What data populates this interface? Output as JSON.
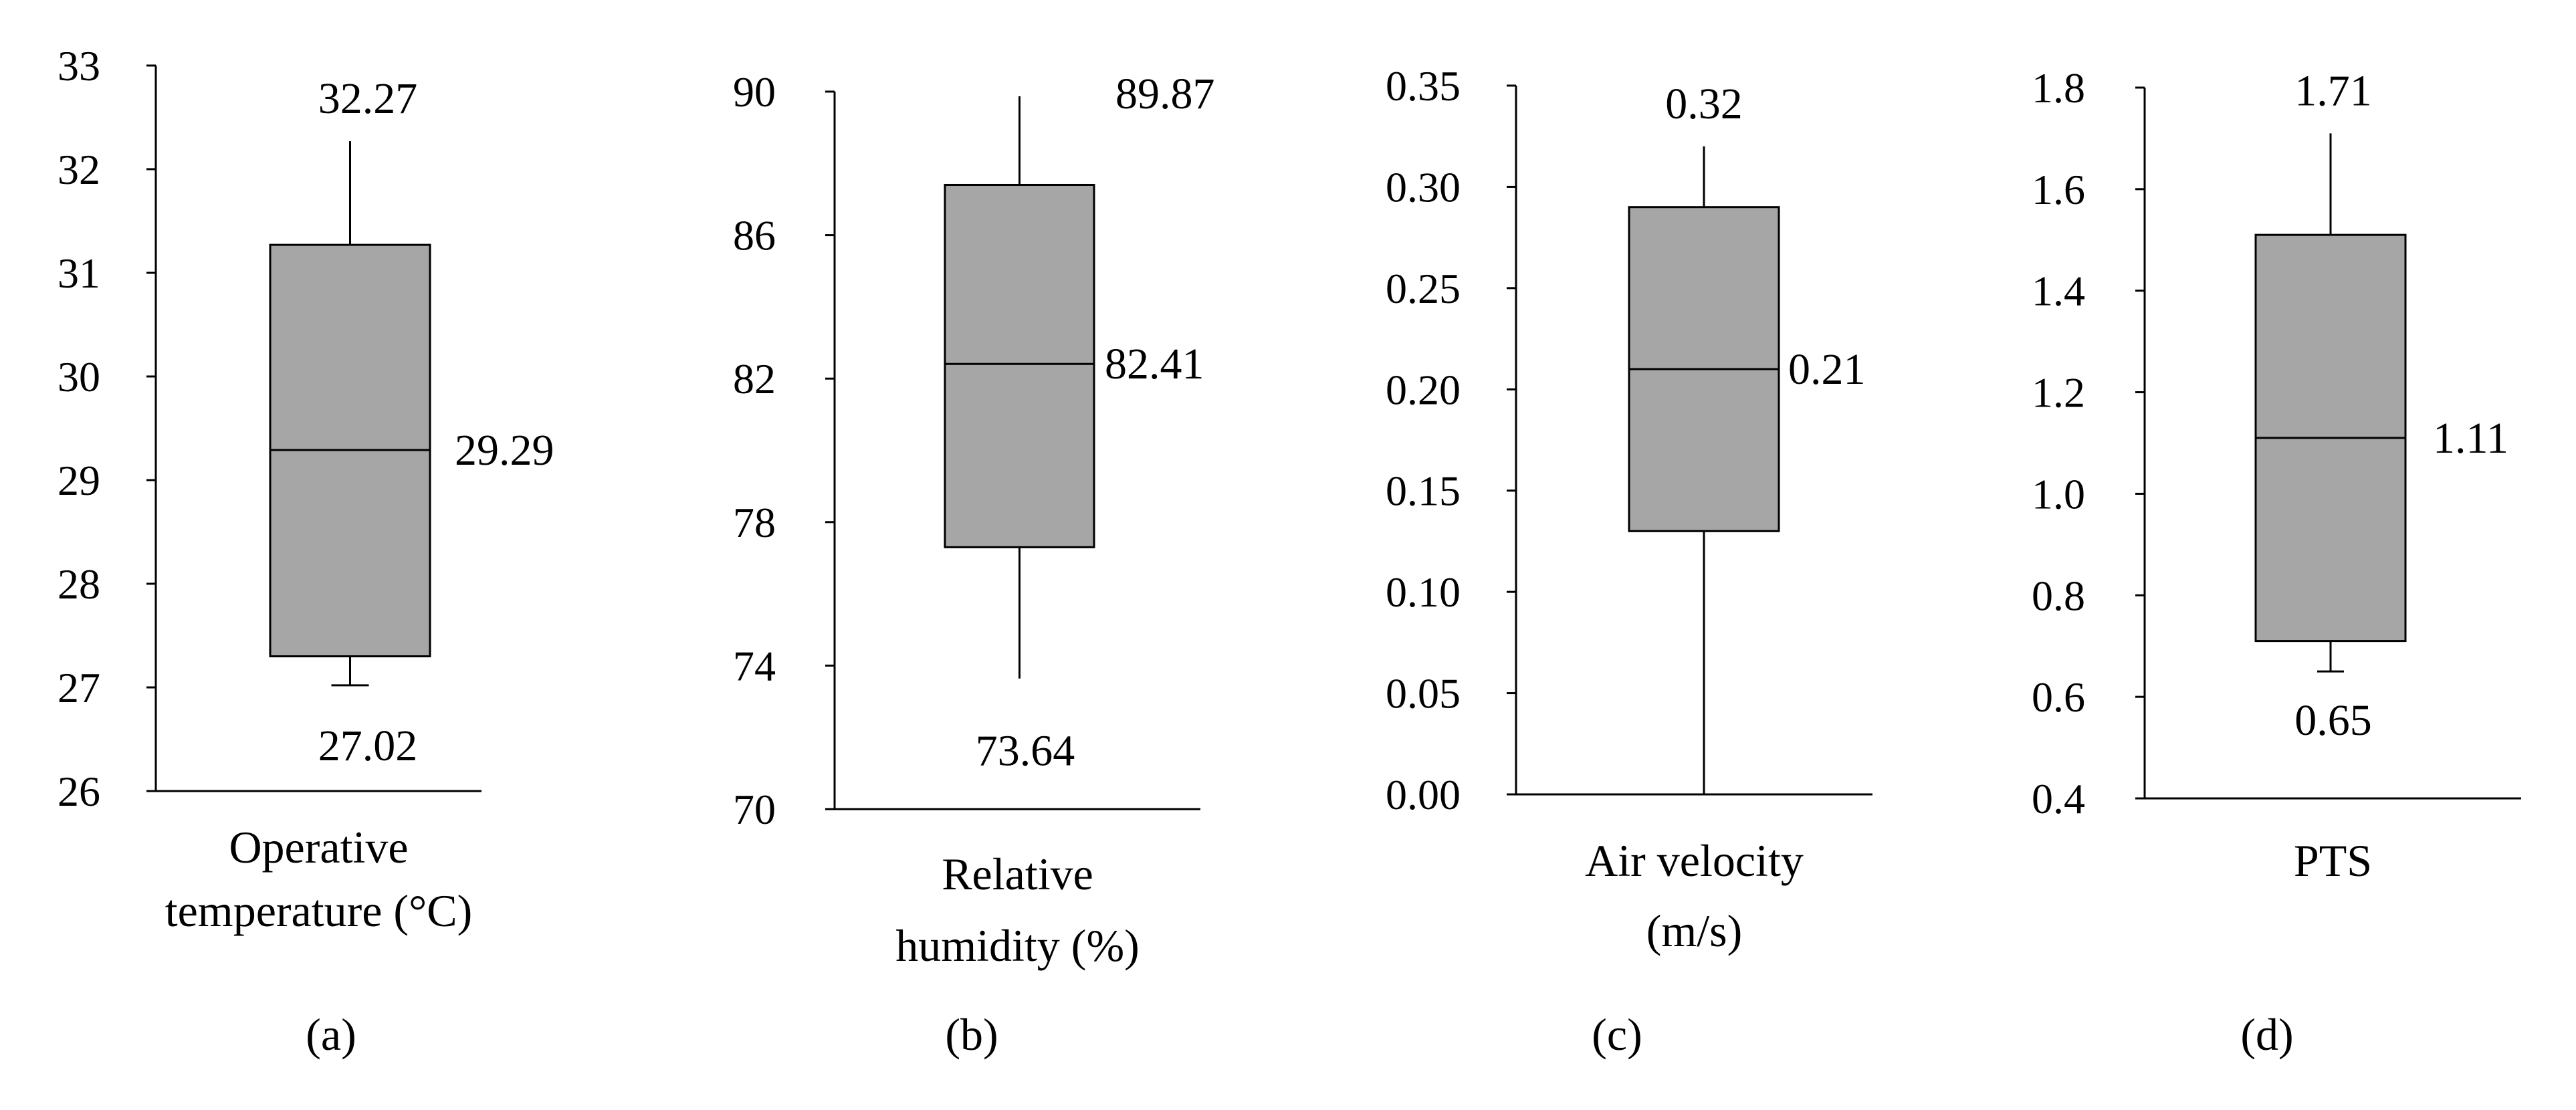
{
  "colors": {
    "box_fill": "#a6a6a6",
    "line": "#000000",
    "background": "#ffffff"
  },
  "chart_data": [
    {
      "type": "box",
      "panel": "(a)",
      "xlabel_lines": [
        "Operative",
        "temperature (°C)"
      ],
      "ylim": [
        26,
        33
      ],
      "ticks": [
        26,
        27,
        28,
        29,
        30,
        31,
        32,
        33
      ],
      "tick_labels": [
        "26",
        "27",
        "28",
        "29",
        "30",
        "31",
        "32",
        "33"
      ],
      "stats": {
        "min": 27.02,
        "q1": 27.3,
        "median": 29.29,
        "q3": 31.27,
        "max": 32.27
      },
      "labels": {
        "min": "27.02",
        "median": "29.29",
        "max": "32.27"
      }
    },
    {
      "type": "box",
      "panel": "(b)",
      "xlabel_lines": [
        "Relative",
        "humidity (%)"
      ],
      "ylim": [
        70,
        90
      ],
      "ticks": [
        70,
        74,
        78,
        82,
        86,
        90
      ],
      "tick_labels": [
        "70",
        "74",
        "78",
        "82",
        "86",
        "90"
      ],
      "stats": {
        "min": 73.64,
        "q1": 77.3,
        "median": 82.41,
        "q3": 87.4,
        "max": 89.87
      },
      "labels": {
        "min": "73.64",
        "median": "82.41",
        "max": "89.87"
      }
    },
    {
      "type": "box",
      "panel": "(c)",
      "xlabel_lines": [
        "Air velocity",
        "(m/s)"
      ],
      "ylim": [
        0,
        0.35
      ],
      "ticks": [
        0,
        0.05,
        0.1,
        0.15,
        0.2,
        0.25,
        0.3,
        0.35
      ],
      "tick_labels": [
        "0.00",
        "0.05",
        "0.10",
        "0.15",
        "0.20",
        "0.25",
        "0.30",
        "0.35"
      ],
      "stats": {
        "min": 0.0,
        "q1": 0.13,
        "median": 0.21,
        "q3": 0.29,
        "max": 0.32
      },
      "labels": {
        "median": "0.21",
        "max": "0.32"
      }
    },
    {
      "type": "box",
      "panel": "(d)",
      "xlabel_lines": [
        "PTS"
      ],
      "ylim": [
        0.4,
        1.8
      ],
      "ticks": [
        0.4,
        0.6,
        0.8,
        1.0,
        1.2,
        1.4,
        1.6,
        1.8
      ],
      "tick_labels": [
        "0.4",
        "0.6",
        "0.8",
        "1.0",
        "1.2",
        "1.4",
        "1.6",
        "1.8"
      ],
      "stats": {
        "min": 0.65,
        "q1": 0.71,
        "median": 1.11,
        "q3": 1.51,
        "max": 1.71
      },
      "labels": {
        "min": "0.65",
        "median": "1.11",
        "max": "1.71"
      }
    }
  ]
}
